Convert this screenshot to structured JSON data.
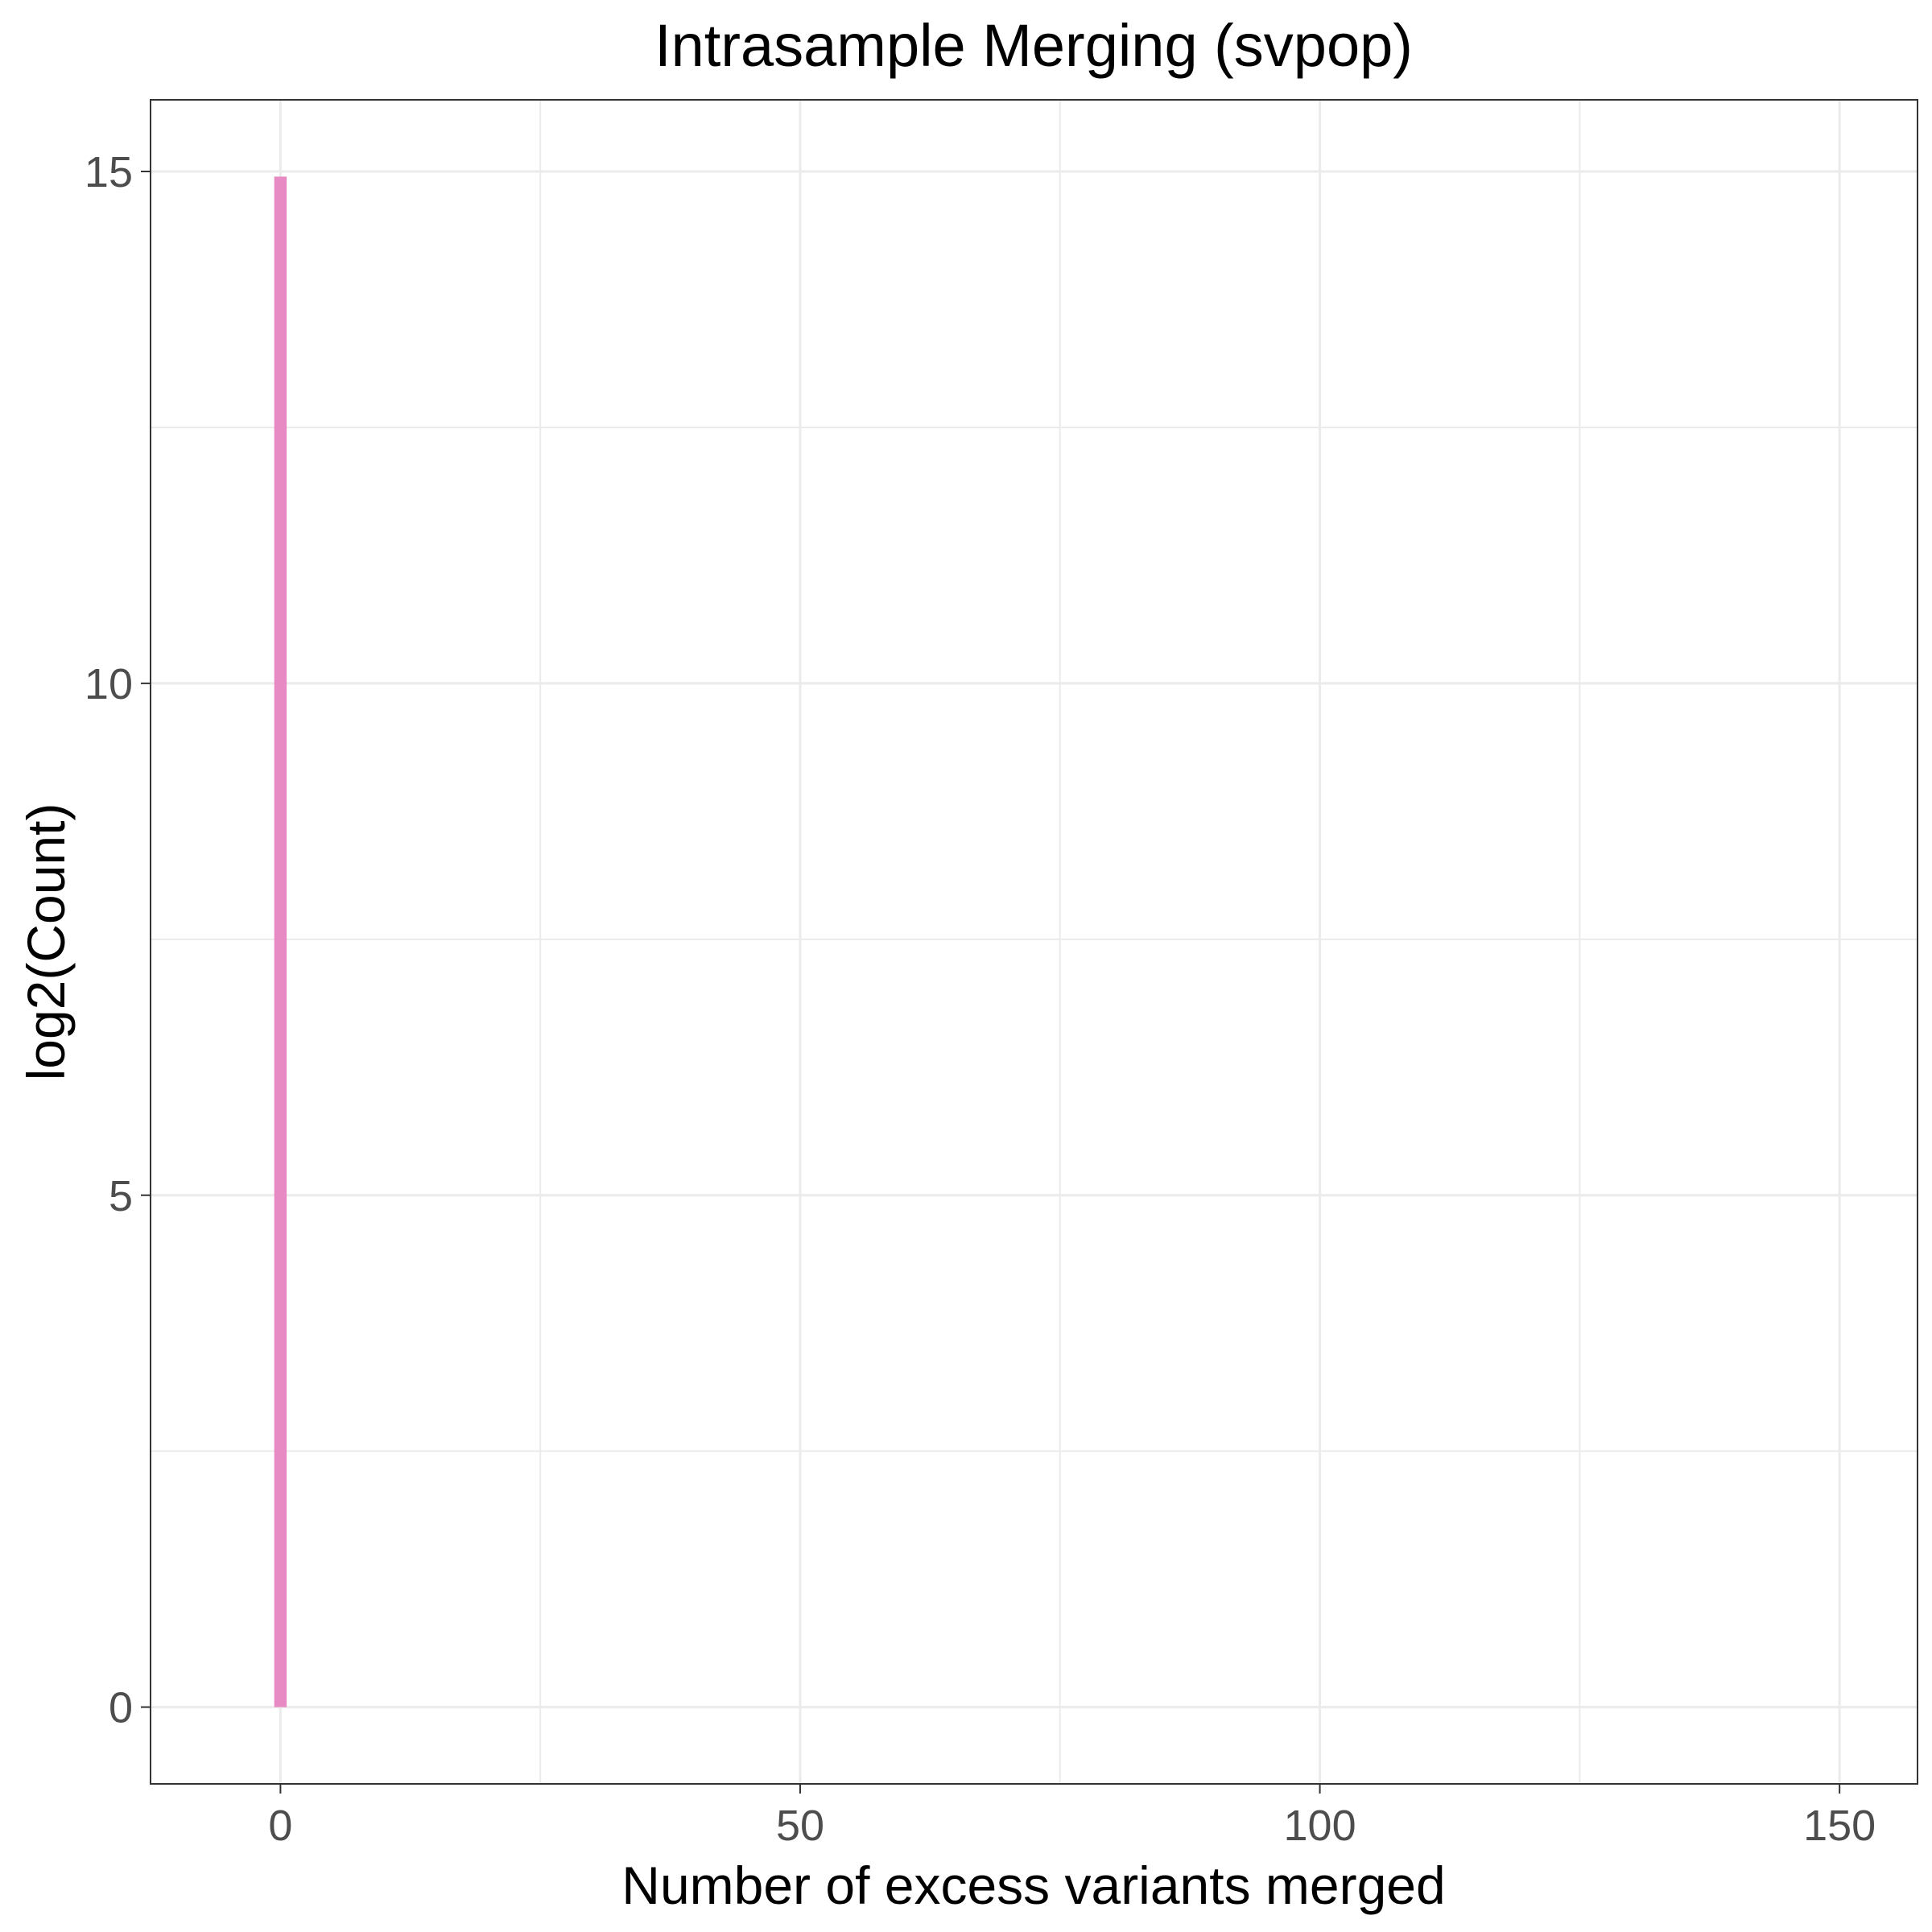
{
  "chart_data": {
    "type": "bar",
    "title": "Intrasample Merging (svpop)",
    "xlabel": "Number of excess variants merged",
    "ylabel": "log2(Count)",
    "x": [
      0
    ],
    "values": [
      14.95
    ],
    "xlim": [
      -12.5,
      157.5
    ],
    "ylim": [
      -0.75,
      15.7
    ],
    "x_ticks": [
      0,
      50,
      100,
      150
    ],
    "x_minor_ticks": [
      25,
      75,
      125
    ],
    "y_ticks": [
      0,
      5,
      10,
      15
    ],
    "y_minor_ticks": [
      2.5,
      7.5,
      12.5
    ],
    "bar_color": "#e78ac3",
    "grid": true,
    "legend": "none"
  }
}
